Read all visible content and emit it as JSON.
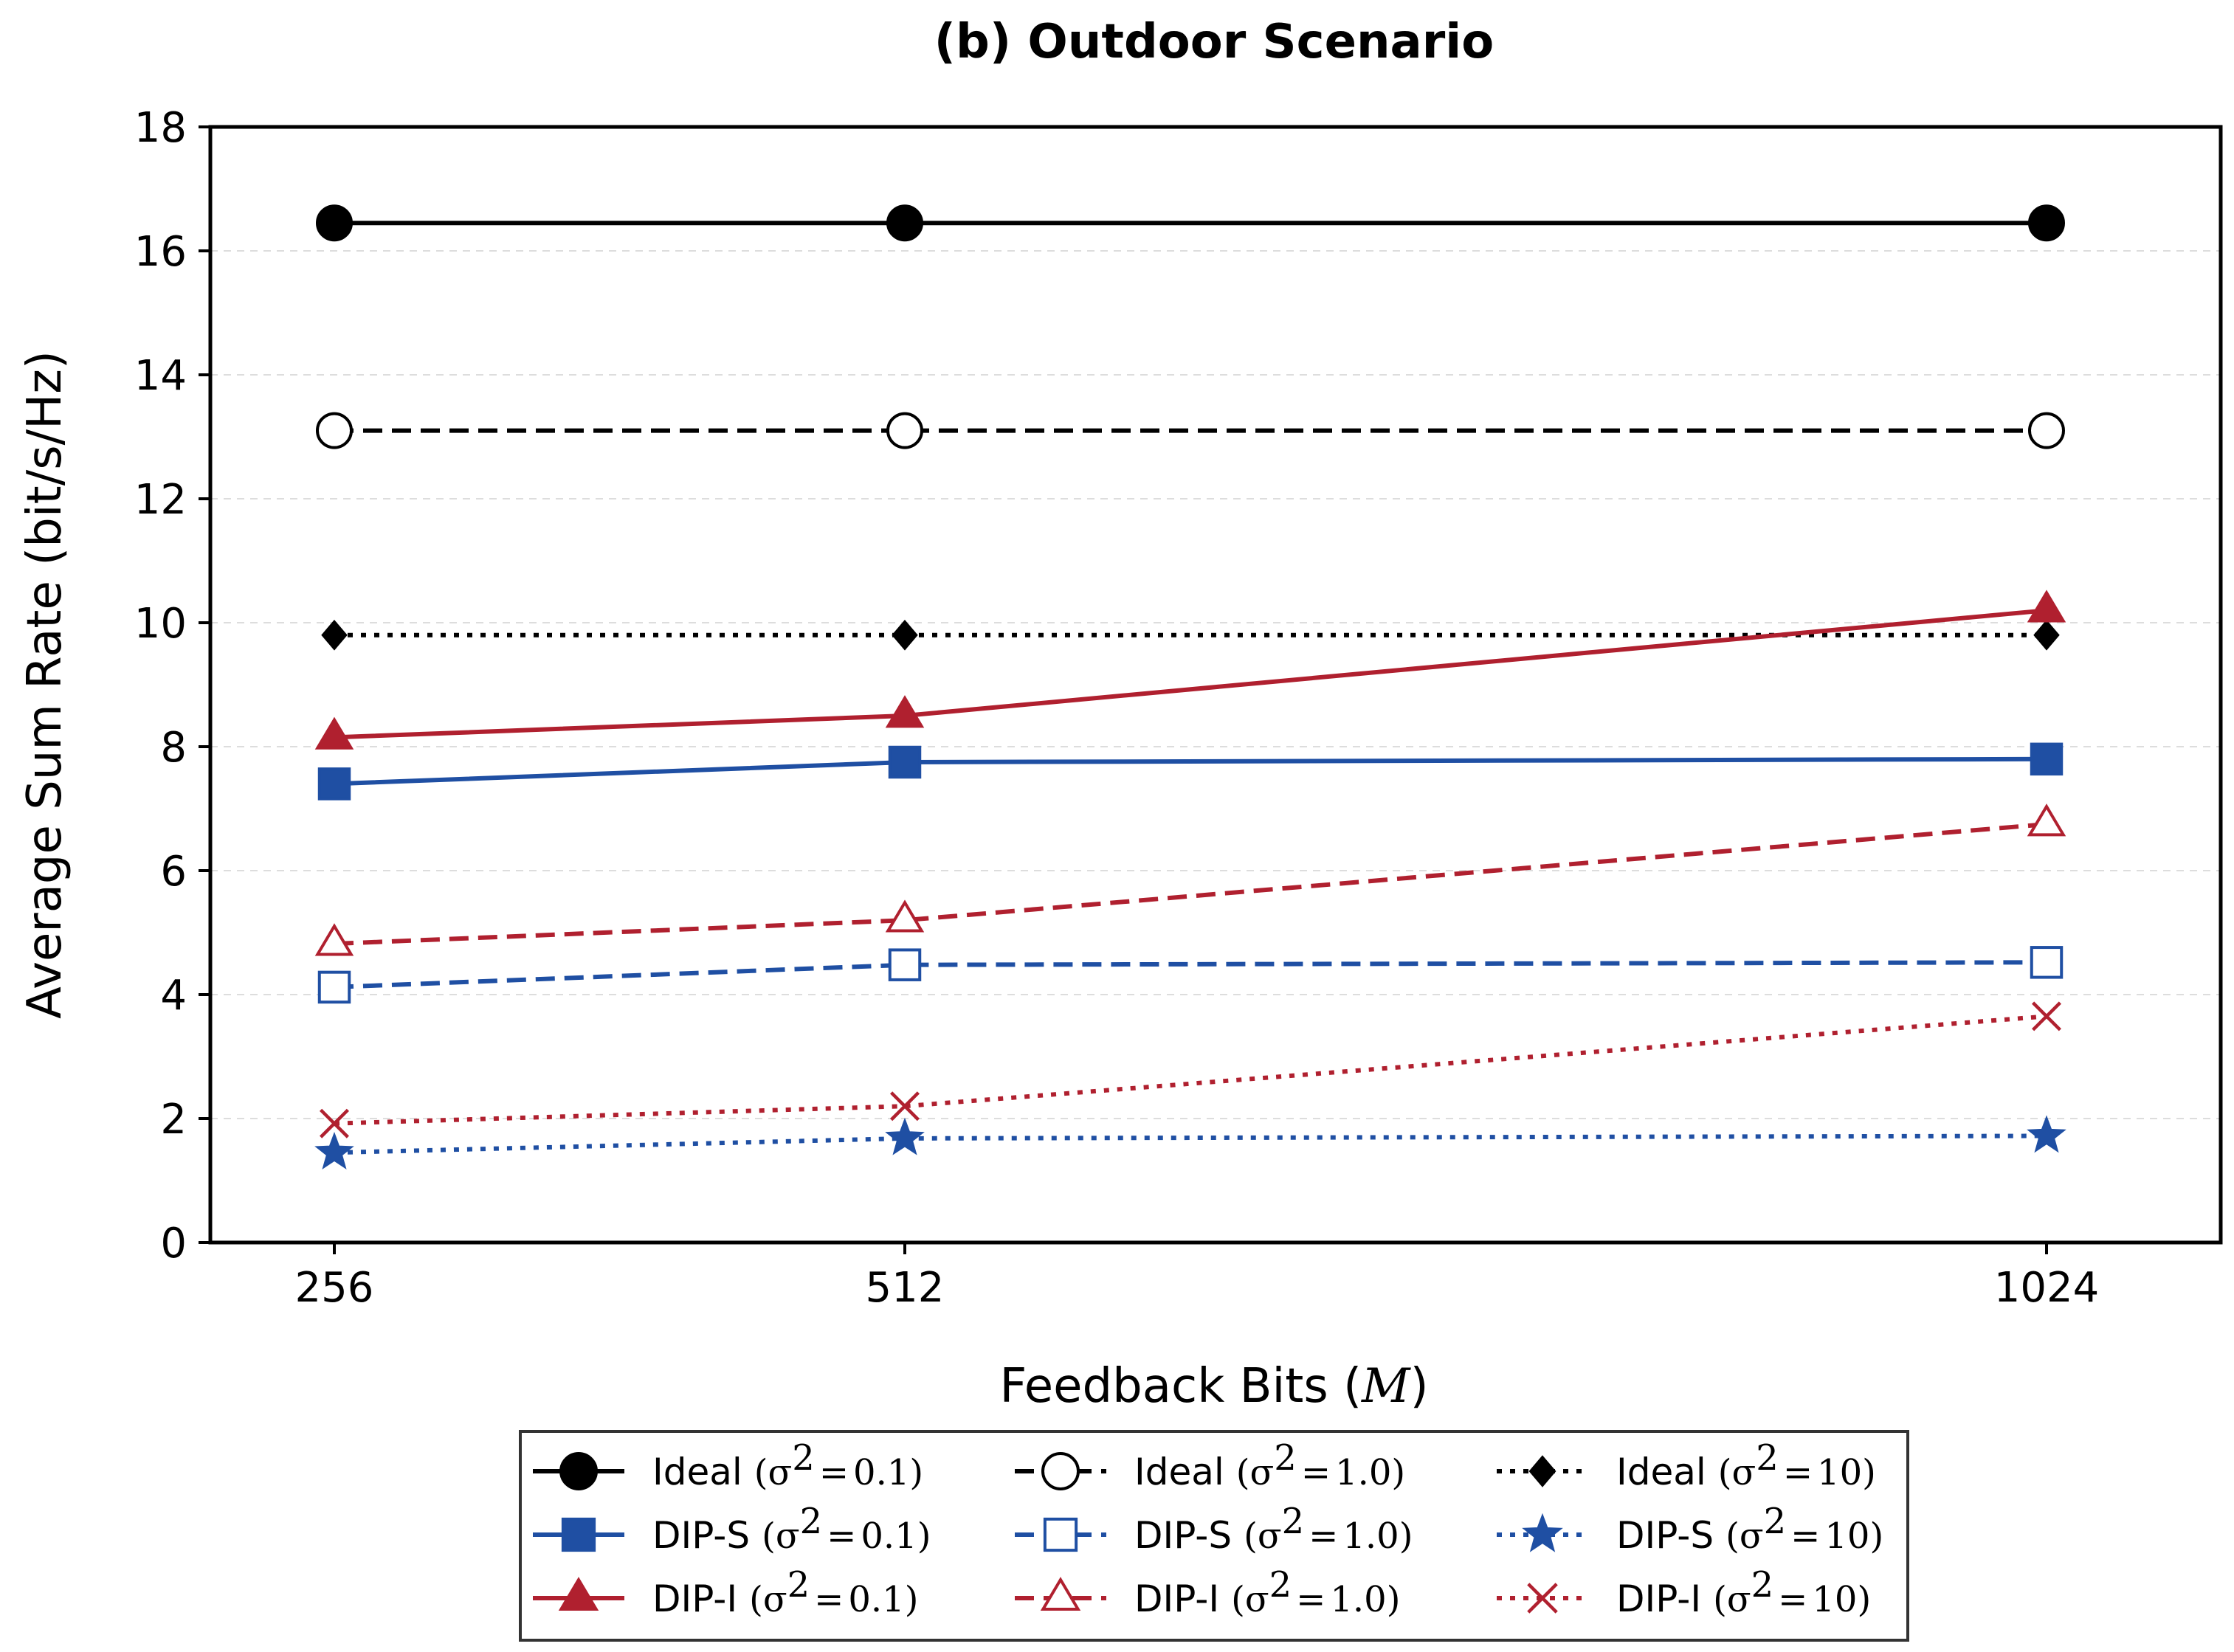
{
  "chart_data": {
    "type": "line",
    "title": "(b) Outdoor Scenario",
    "xlabel_text": "Feedback Bits",
    "xlabel_var": "M",
    "ylabel": "Average Sum Rate (bit/s/Hz)",
    "categories": [
      "256",
      "512",
      "1024"
    ],
    "x": [
      256,
      512,
      1024
    ],
    "ylim": [
      0,
      18
    ],
    "yticks": [
      "0",
      "2",
      "4",
      "6",
      "8",
      "10",
      "12",
      "14",
      "16",
      "18"
    ],
    "grid": "horizontal-dashed",
    "legend_position": "bottom-center",
    "series": [
      {
        "name": "Ideal",
        "sigma": "0.1",
        "color": "#000000",
        "marker": "circle-filled",
        "linestyle": "solid",
        "values": [
          16.45,
          16.45,
          16.45
        ]
      },
      {
        "name": "Ideal",
        "sigma": "1.0",
        "color": "#000000",
        "marker": "circle-open",
        "linestyle": "dashed",
        "values": [
          13.1,
          13.1,
          13.1
        ]
      },
      {
        "name": "Ideal",
        "sigma": "10",
        "color": "#000000",
        "marker": "diamond-filled",
        "linestyle": "dotted",
        "values": [
          9.8,
          9.8,
          9.8
        ]
      },
      {
        "name": "DIP-S",
        "sigma": "0.1",
        "color": "#1f4fa3",
        "marker": "square-filled",
        "linestyle": "solid",
        "values": [
          7.4,
          7.75,
          7.8
        ]
      },
      {
        "name": "DIP-S",
        "sigma": "1.0",
        "color": "#1f4fa3",
        "marker": "square-open",
        "linestyle": "dashed",
        "values": [
          4.12,
          4.48,
          4.52
        ]
      },
      {
        "name": "DIP-S",
        "sigma": "10",
        "color": "#1f4fa3",
        "marker": "star-filled",
        "linestyle": "dotted",
        "values": [
          1.45,
          1.68,
          1.72
        ]
      },
      {
        "name": "DIP-I",
        "sigma": "0.1",
        "color": "#b0202f",
        "marker": "triangle-filled",
        "linestyle": "solid",
        "values": [
          8.15,
          8.5,
          10.2
        ]
      },
      {
        "name": "DIP-I",
        "sigma": "1.0",
        "color": "#b0202f",
        "marker": "triangle-open",
        "linestyle": "dashed",
        "values": [
          4.82,
          5.2,
          6.75
        ]
      },
      {
        "name": "DIP-I",
        "sigma": "10",
        "color": "#b0202f",
        "marker": "x",
        "linestyle": "dotted",
        "values": [
          1.92,
          2.2,
          3.65
        ]
      }
    ],
    "legend_order": [
      0,
      1,
      2,
      3,
      4,
      5,
      6,
      7,
      8
    ]
  }
}
